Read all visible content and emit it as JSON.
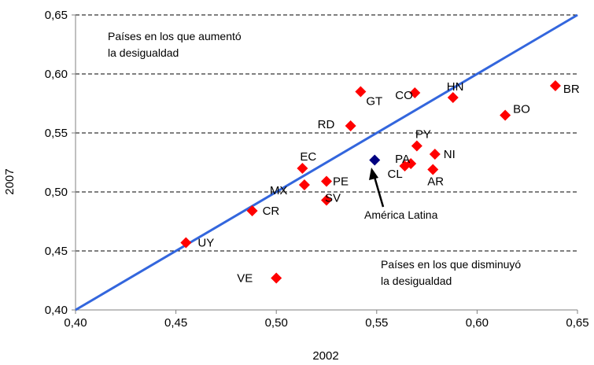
{
  "chart_data": {
    "type": "scatter",
    "title": "",
    "xlabel": "2002",
    "ylabel": "2007",
    "xlim": [
      0.4,
      0.65
    ],
    "ylim": [
      0.4,
      0.65
    ],
    "xticks": [
      "0,40",
      "0,45",
      "0,50",
      "0,55",
      "0,60",
      "0,65"
    ],
    "yticks": [
      "0,40",
      "0,45",
      "0,50",
      "0,55",
      "0,60",
      "0,65"
    ],
    "tick_values": [
      0.4,
      0.45,
      0.5,
      0.55,
      0.6,
      0.65
    ],
    "grid": "horizontal dashed",
    "legend": "none",
    "reference_line": {
      "from": [
        0.4,
        0.4
      ],
      "to": [
        0.65,
        0.65
      ],
      "color": "#3366dd"
    },
    "annotations": {
      "upper_line1": "Países en los que aumentó",
      "upper_line2": "la desigualdad",
      "lower_line1": "Países en los que disminuyó",
      "lower_line2": "la desigualdad",
      "arrow_label": "América Latina"
    },
    "colors": {
      "countries": "#ff0000",
      "region": "#000080",
      "line": "#3366dd",
      "grid": "#000000"
    },
    "points": [
      {
        "label": "BR",
        "x": 0.639,
        "y": 0.59
      },
      {
        "label": "BO",
        "x": 0.614,
        "y": 0.565
      },
      {
        "label": "HN",
        "x": 0.588,
        "y": 0.58
      },
      {
        "label": "CO",
        "x": 0.569,
        "y": 0.584
      },
      {
        "label": "GT",
        "x": 0.542,
        "y": 0.585
      },
      {
        "label": "RD",
        "x": 0.537,
        "y": 0.556
      },
      {
        "label": "PY",
        "x": 0.57,
        "y": 0.539
      },
      {
        "label": "NI",
        "x": 0.579,
        "y": 0.532
      },
      {
        "label": "PA",
        "x": 0.567,
        "y": 0.524
      },
      {
        "label": "CL",
        "x": 0.564,
        "y": 0.522
      },
      {
        "label": "AR",
        "x": 0.578,
        "y": 0.519
      },
      {
        "label": "EC",
        "x": 0.513,
        "y": 0.52
      },
      {
        "label": "PE",
        "x": 0.525,
        "y": 0.509
      },
      {
        "label": "MX",
        "x": 0.514,
        "y": 0.506
      },
      {
        "label": "SV",
        "x": 0.525,
        "y": 0.493
      },
      {
        "label": "CR",
        "x": 0.488,
        "y": 0.484
      },
      {
        "label": "UY",
        "x": 0.455,
        "y": 0.457
      },
      {
        "label": "VE",
        "x": 0.5,
        "y": 0.427
      }
    ],
    "region_point": {
      "label": "América Latina",
      "x": 0.549,
      "y": 0.527
    }
  }
}
